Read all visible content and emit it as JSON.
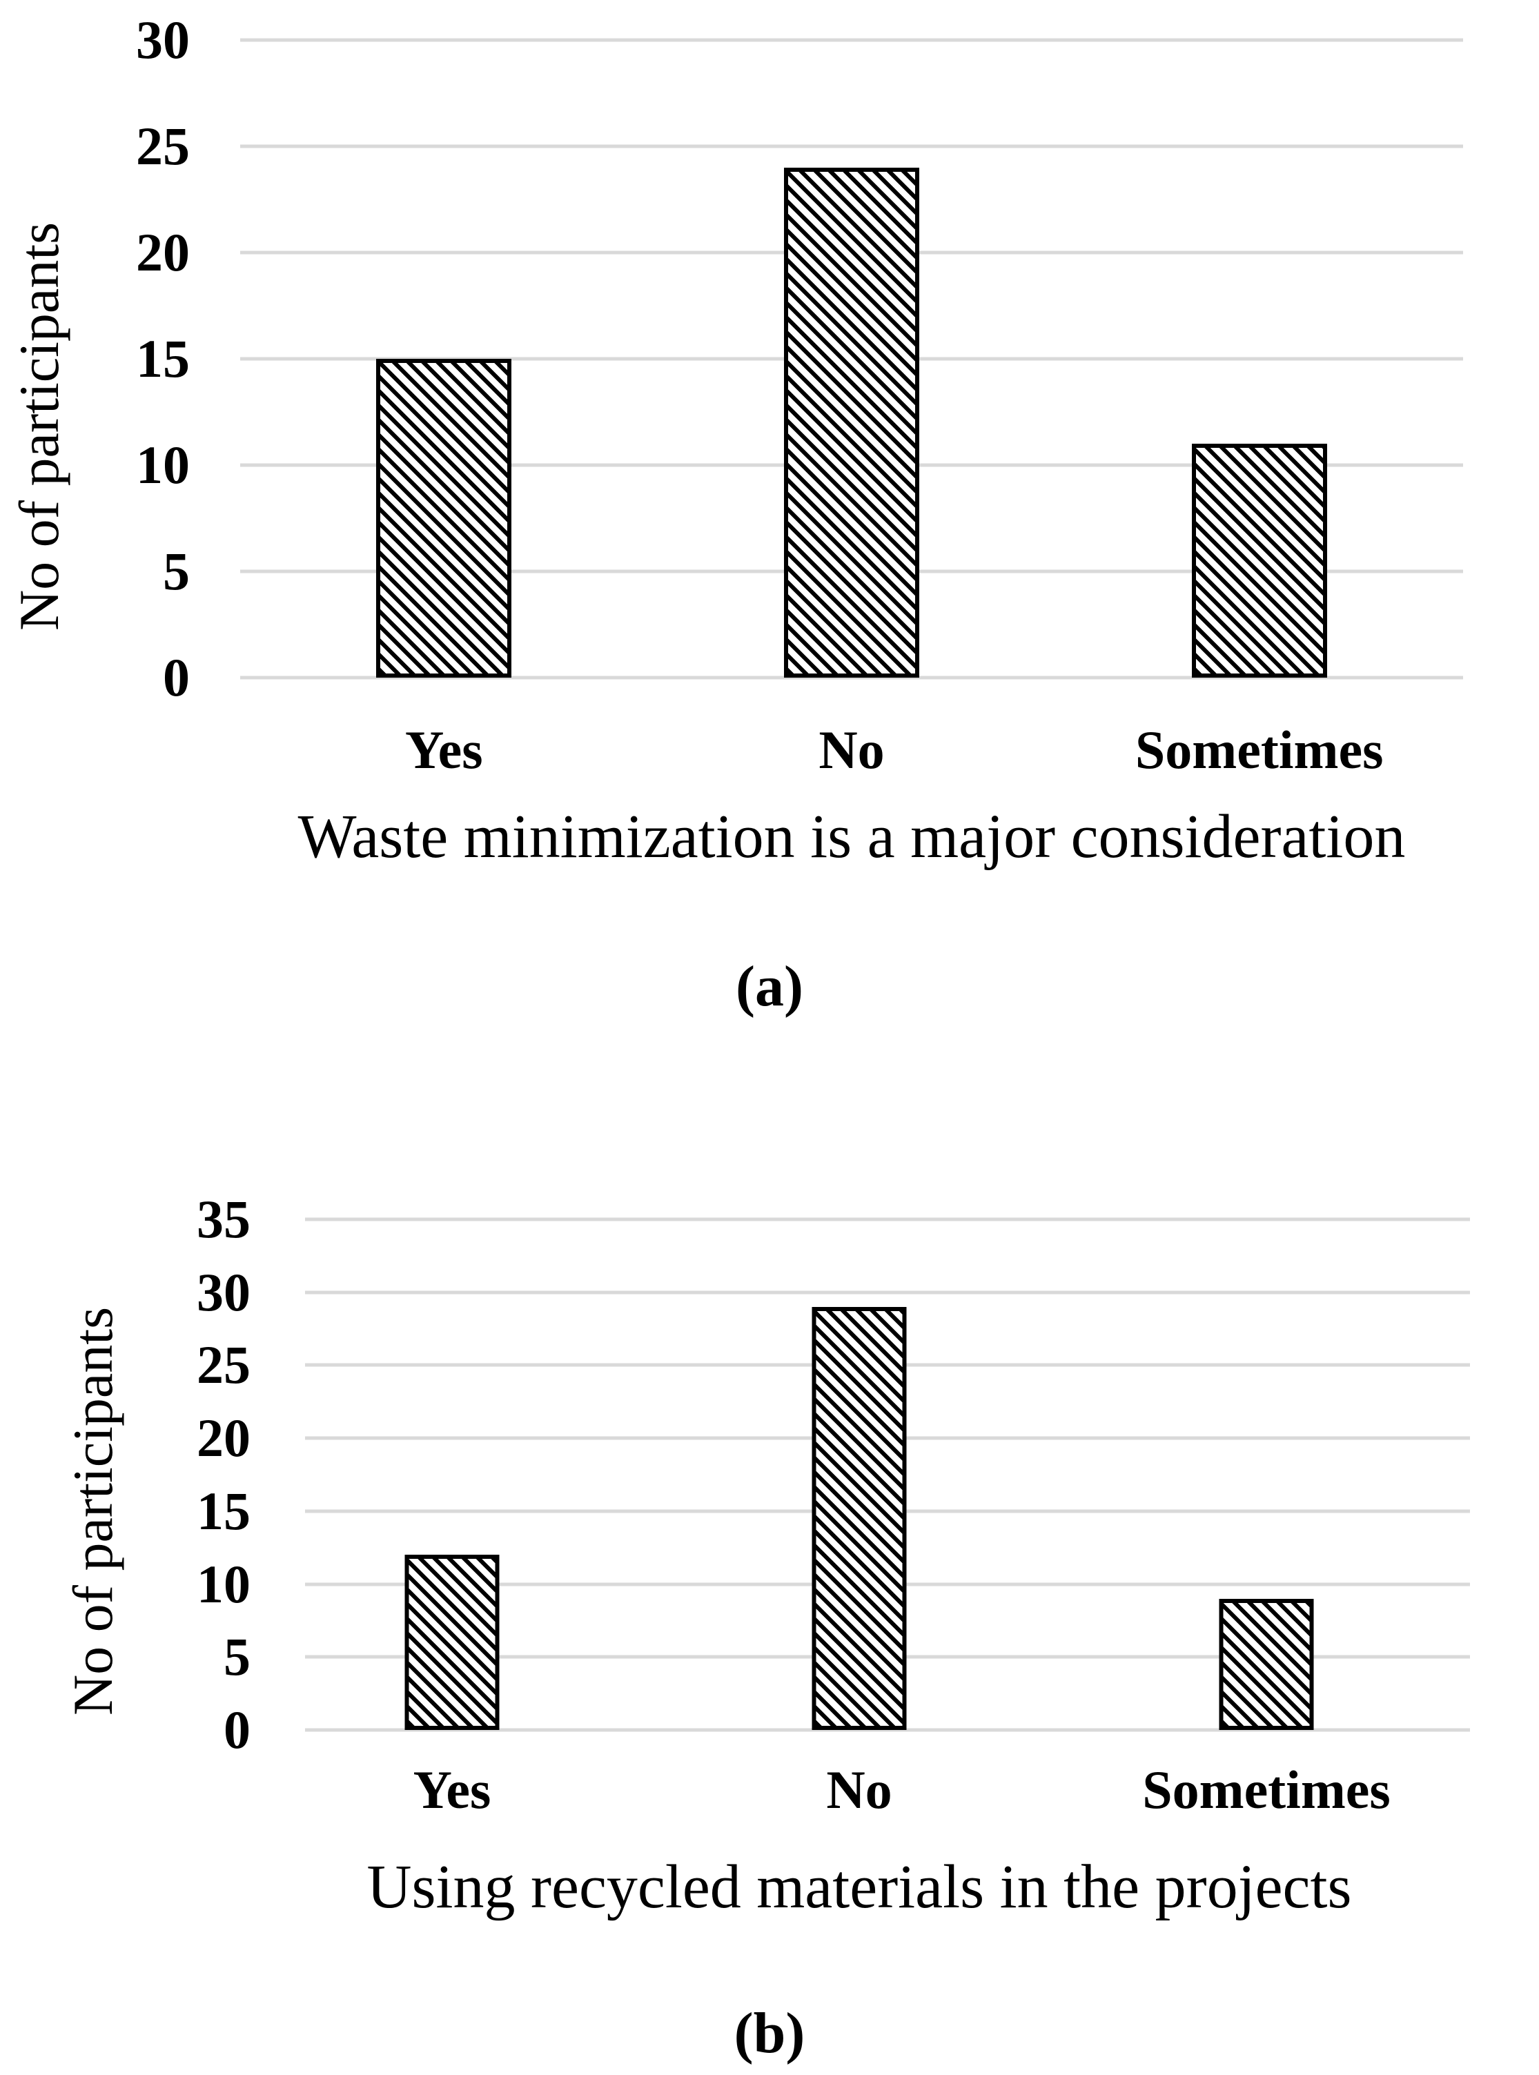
{
  "chart_data": [
    {
      "id": "a",
      "type": "bar",
      "caption": "(a)",
      "ylabel": "No of participants",
      "xlabel": "Waste minimization is a major consideration",
      "categories": [
        "Yes",
        "No",
        "Sometimes"
      ],
      "values": [
        15,
        24,
        11
      ],
      "ylim": [
        0,
        30
      ],
      "yticks": [
        0,
        5,
        10,
        15,
        20,
        25,
        30
      ],
      "grid": "horizontal-only",
      "legend": "none",
      "bar_style": "white fill with black diagonal hatch, black outline"
    },
    {
      "id": "b",
      "type": "bar",
      "caption": "(b)",
      "ylabel": "No of participants",
      "xlabel": "Using recycled materials in the projects",
      "categories": [
        "Yes",
        "No",
        "Sometimes"
      ],
      "values": [
        12,
        29,
        9
      ],
      "ylim": [
        0,
        35
      ],
      "yticks": [
        0,
        5,
        10,
        15,
        20,
        25,
        30,
        35
      ],
      "grid": "horizontal-only",
      "legend": "none",
      "bar_style": "white fill with black diagonal hatch, black outline"
    }
  ],
  "colors": {
    "background": "#ffffff",
    "text": "#000000",
    "gridline": "#d9d9d9",
    "hatch": "#000000",
    "bar_background": "#ffffff"
  }
}
